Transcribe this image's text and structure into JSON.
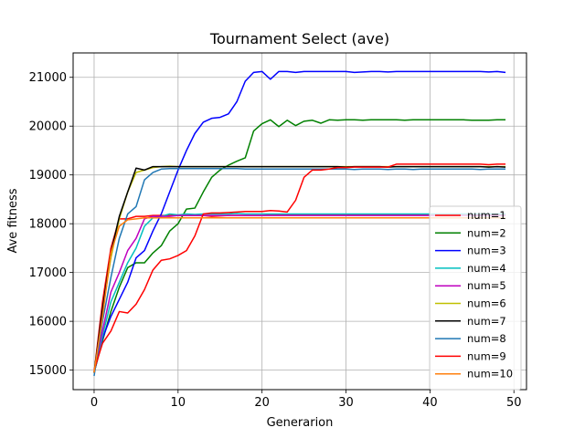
{
  "chart_data": {
    "type": "line",
    "title": "Tournament Select (ave)",
    "xlabel": "Generarion",
    "ylabel": "Ave fitness",
    "xlim": [
      -2.5,
      51.5
    ],
    "ylim": [
      14600,
      21500
    ],
    "xticks": [
      0,
      10,
      20,
      30,
      40,
      50
    ],
    "yticks": [
      15000,
      16000,
      17000,
      18000,
      19000,
      20000,
      21000
    ],
    "grid": true,
    "legend_position": "lower-right",
    "series": [
      {
        "name": "num=1",
        "color": "#ff0000",
        "values": [
          14950,
          16400,
          17500,
          18100,
          18100,
          18150,
          18150,
          18170,
          18170,
          18170,
          18170,
          18170,
          18170,
          18170,
          18150,
          18160,
          18170,
          18170,
          18170,
          18170,
          18170,
          18180,
          18180,
          18180,
          18180,
          18180,
          18180,
          18180,
          18180,
          18180,
          18180,
          18180,
          18180,
          18180,
          18180,
          18180,
          18180,
          18180,
          18180,
          18180,
          18180,
          18180,
          18180,
          18180,
          18180,
          18180,
          18180,
          18180,
          18180,
          18180
        ]
      },
      {
        "name": "num=2",
        "color": "#008000",
        "values": [
          14950,
          15600,
          16200,
          16700,
          17100,
          17200,
          17200,
          17400,
          17550,
          17850,
          18000,
          18300,
          18320,
          18650,
          18950,
          19100,
          19200,
          19280,
          19350,
          19900,
          20050,
          20130,
          19990,
          20120,
          20010,
          20100,
          20120,
          20060,
          20130,
          20120,
          20130,
          20130,
          20120,
          20130,
          20130,
          20130,
          20130,
          20120,
          20130,
          20130,
          20130,
          20130,
          20130,
          20130,
          20130,
          20120,
          20120,
          20120,
          20130,
          20130
        ]
      },
      {
        "name": "num=3",
        "color": "#0000ff",
        "values": [
          14950,
          15650,
          16100,
          16450,
          16800,
          17300,
          17450,
          17850,
          18200,
          18650,
          19100,
          19500,
          19850,
          20080,
          20160,
          20180,
          20250,
          20500,
          20920,
          21100,
          21120,
          20960,
          21120,
          21120,
          21100,
          21120,
          21120,
          21120,
          21120,
          21120,
          21120,
          21100,
          21110,
          21120,
          21120,
          21110,
          21120,
          21120,
          21120,
          21120,
          21120,
          21120,
          21120,
          21120,
          21120,
          21120,
          21120,
          21110,
          21120,
          21100
        ]
      },
      {
        "name": "num=4",
        "color": "#00bfbf",
        "values": [
          14950,
          15700,
          16400,
          16800,
          17200,
          17500,
          17950,
          18120,
          18150,
          18200,
          18180,
          18200,
          18190,
          18200,
          18200,
          18200,
          18200,
          18210,
          18200,
          18200,
          18200,
          18200,
          18200,
          18200,
          18200,
          18200,
          18200,
          18200,
          18200,
          18200,
          18200,
          18200,
          18200,
          18200,
          18200,
          18200,
          18200,
          18200,
          18200,
          18200,
          18200,
          18200,
          18200,
          18200,
          18200,
          18200,
          18200,
          18200,
          18200,
          18200
        ]
      },
      {
        "name": "num=5",
        "color": "#bf00bf",
        "values": [
          14950,
          15800,
          16600,
          17000,
          17450,
          17700,
          18100,
          18150,
          18150,
          18150,
          18170,
          18170,
          18170,
          18170,
          18170,
          18170,
          18170,
          18170,
          18170,
          18170,
          18170,
          18170,
          18170,
          18170,
          18170,
          18170,
          18170,
          18170,
          18170,
          18170,
          18170,
          18170,
          18170,
          18170,
          18170,
          18170,
          18170,
          18170,
          18170,
          18170,
          18170,
          18170,
          18170,
          18170,
          18170,
          18170,
          18170,
          18170,
          18170,
          18170
        ]
      },
      {
        "name": "num=6",
        "color": "#bfbf00",
        "values": [
          14950,
          16200,
          17300,
          18100,
          18650,
          19050,
          19100,
          19150,
          19170,
          19180,
          19170,
          19170,
          19170,
          19170,
          19170,
          19170,
          19170,
          19170,
          19170,
          19170,
          19170,
          19170,
          19170,
          19170,
          19170,
          19170,
          19170,
          19170,
          19170,
          19170,
          19170,
          19170,
          19170,
          19170,
          19170,
          19170,
          19170,
          19170,
          19170,
          19170,
          19170,
          19170,
          19170,
          19170,
          19170,
          19170,
          19170,
          19170,
          19170,
          19170
        ]
      },
      {
        "name": "num=7",
        "color": "#000000",
        "values": [
          14950,
          16250,
          17400,
          18150,
          18650,
          19140,
          19100,
          19170,
          19170,
          19170,
          19170,
          19170,
          19170,
          19170,
          19170,
          19170,
          19170,
          19170,
          19170,
          19170,
          19170,
          19170,
          19170,
          19170,
          19170,
          19170,
          19170,
          19170,
          19170,
          19170,
          19160,
          19170,
          19170,
          19170,
          19170,
          19160,
          19170,
          19170,
          19170,
          19170,
          19170,
          19170,
          19170,
          19170,
          19170,
          19170,
          19170,
          19160,
          19170,
          19160
        ]
      },
      {
        "name": "num=8",
        "color": "#1f77b4",
        "values": [
          14880,
          16000,
          16900,
          17700,
          18200,
          18350,
          18900,
          19050,
          19120,
          19130,
          19130,
          19130,
          19130,
          19130,
          19130,
          19130,
          19130,
          19130,
          19120,
          19120,
          19120,
          19120,
          19120,
          19120,
          19120,
          19120,
          19120,
          19120,
          19120,
          19120,
          19120,
          19110,
          19120,
          19120,
          19120,
          19110,
          19120,
          19120,
          19110,
          19120,
          19120,
          19120,
          19120,
          19120,
          19120,
          19120,
          19110,
          19120,
          19120,
          19120
        ]
      },
      {
        "name": "num=9",
        "color": "#ff0000",
        "values": [
          15000,
          15550,
          15800,
          16200,
          16170,
          16350,
          16650,
          17050,
          17250,
          17280,
          17350,
          17450,
          17750,
          18200,
          18220,
          18220,
          18230,
          18240,
          18250,
          18250,
          18250,
          18270,
          18260,
          18240,
          18480,
          18950,
          19100,
          19100,
          19120,
          19150,
          19150,
          19160,
          19160,
          19160,
          19160,
          19160,
          19220,
          19220,
          19220,
          19220,
          19220,
          19220,
          19220,
          19220,
          19220,
          19220,
          19220,
          19210,
          19220,
          19220
        ]
      },
      {
        "name": "num=10",
        "color": "#ff7f0e",
        "values": [
          14950,
          16100,
          17400,
          17950,
          18080,
          18100,
          18120,
          18120,
          18120,
          18120,
          18120,
          18120,
          18120,
          18120,
          18120,
          18120,
          18120,
          18120,
          18120,
          18120,
          18120,
          18120,
          18120,
          18120,
          18120,
          18120,
          18120,
          18120,
          18120,
          18120,
          18120,
          18120,
          18120,
          18120,
          18120,
          18120,
          18120,
          18120,
          18120,
          18120,
          18120,
          18120,
          18120,
          18120,
          18120,
          18120,
          18120,
          18120,
          18120,
          18120
        ]
      }
    ]
  }
}
